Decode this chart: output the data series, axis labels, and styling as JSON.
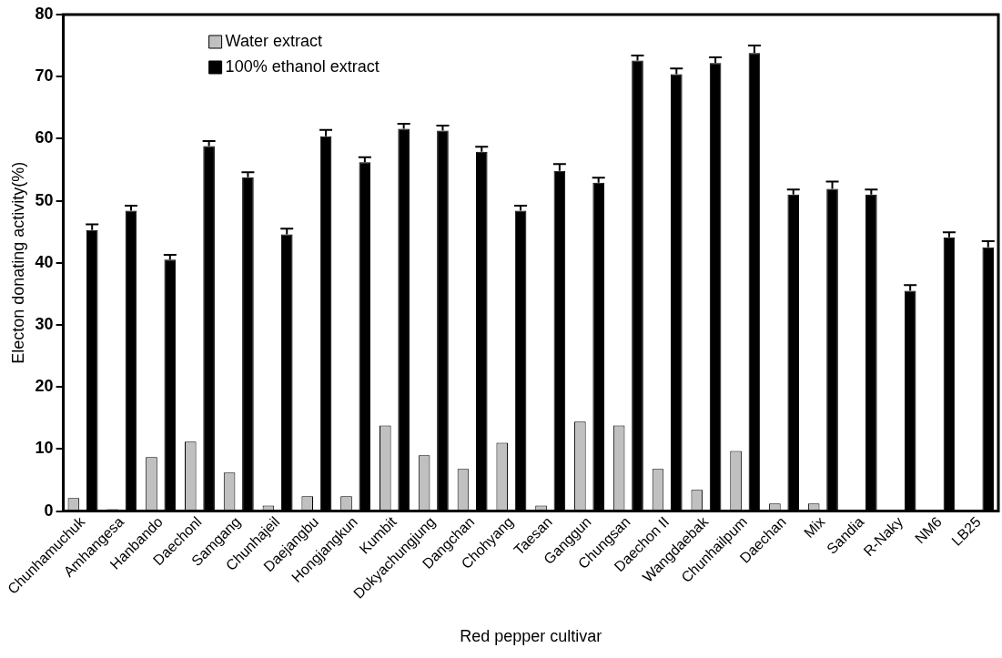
{
  "chart_data": {
    "type": "bar",
    "xlabel": "Red pepper cultivar",
    "ylabel": "Electon donating activity(%)",
    "categories": [
      "Chunhamuchuk",
      "Amhangesa",
      "Hanbando",
      "Daechonl",
      "Samgang",
      "Chunhajeil",
      "Daejangbu",
      "Hongjangkun",
      "Kumbit",
      "Dokyachungjung",
      "Dangchan",
      "Chohyang",
      "Taesan",
      "Ganggun",
      "Chungsan",
      "Daechon II",
      "Wangdaebak",
      "Chunhailpum",
      "Daechan",
      "Mix",
      "Sandia",
      "R-Naky",
      "NM6",
      "LB25"
    ],
    "series": [
      {
        "name": "Water extract",
        "color": "#c0c0c0",
        "values": [
          2.1,
          0.3,
          8.7,
          11.2,
          6.2,
          0.9,
          2.4,
          2.4,
          13.8,
          9.0,
          6.8,
          11.0,
          0.9,
          14.4,
          13.8,
          6.8,
          3.4,
          9.7,
          1.2,
          1.2,
          0,
          0,
          0,
          0
        ]
      },
      {
        "name": "100% ethanol extract",
        "color": "#000000",
        "values": [
          45.3,
          48.4,
          40.5,
          58.8,
          53.8,
          44.6,
          60.4,
          56.2,
          61.6,
          61.3,
          57.9,
          48.4,
          54.8,
          52.9,
          72.6,
          70.4,
          72.2,
          73.8,
          51.0,
          51.9,
          51.0,
          35.5,
          44.1,
          42.5
        ],
        "errors": [
          [
            45.3,
            46.2
          ],
          [
            48.4,
            49.2
          ],
          [
            40.5,
            41.3
          ],
          [
            58.8,
            59.6
          ],
          [
            53.8,
            54.6
          ],
          [
            44.6,
            45.5
          ],
          [
            60.4,
            61.4
          ],
          [
            56.2,
            57.0
          ],
          [
            61.6,
            62.4
          ],
          [
            61.3,
            62.1
          ],
          [
            57.9,
            58.7
          ],
          [
            48.4,
            49.2
          ],
          [
            54.8,
            55.9
          ],
          [
            52.9,
            53.7
          ],
          [
            72.6,
            73.4
          ],
          [
            70.4,
            71.3
          ],
          [
            72.2,
            73.1
          ],
          [
            73.8,
            75.0
          ],
          [
            51.0,
            51.8
          ],
          [
            51.9,
            53.1
          ],
          [
            51.0,
            51.8
          ],
          [
            35.5,
            36.4
          ],
          [
            44.1,
            44.9
          ],
          [
            42.5,
            43.5
          ]
        ]
      }
    ],
    "ylim": [
      0,
      80
    ],
    "yticks": [
      0,
      10,
      20,
      30,
      40,
      50,
      60,
      70,
      80
    ],
    "grid": false,
    "legend": "top left"
  }
}
